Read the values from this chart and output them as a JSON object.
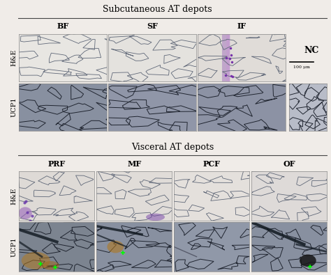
{
  "title_top": "Subcutaneous AT depots",
  "title_bottom": "Visceral AT depots",
  "top_col_labels": [
    "BF",
    "SF",
    "IF"
  ],
  "bottom_col_labels": [
    "PRF",
    "MF",
    "PCF",
    "OF"
  ],
  "row_labels_top": [
    "H&E",
    "UCP1"
  ],
  "row_labels_bottom": [
    "H&E",
    "UCP1"
  ],
  "nc_label": "NC",
  "scalebar_label": "100 μm",
  "bg_color": "#f0ece8",
  "top_he_colors": [
    "#e8e6e2",
    "#e4e2de",
    "#e0dcd8"
  ],
  "top_ucp1_colors": [
    "#8890a0",
    "#9096a8",
    "#8c92a4",
    "#b8bcc8"
  ],
  "bot_he_colors": [
    "#dedad6",
    "#e0dcd8",
    "#e4e0dc",
    "#dedad8"
  ],
  "bot_ucp1_colors": [
    "#7c8490",
    "#8890a0",
    "#9098a8",
    "#8890a0"
  ],
  "cell_edge_he": "#606878",
  "cell_edge_ucp1": "#202530",
  "title_fontsize": 9,
  "label_fontsize": 8,
  "row_label_fontsize": 7
}
